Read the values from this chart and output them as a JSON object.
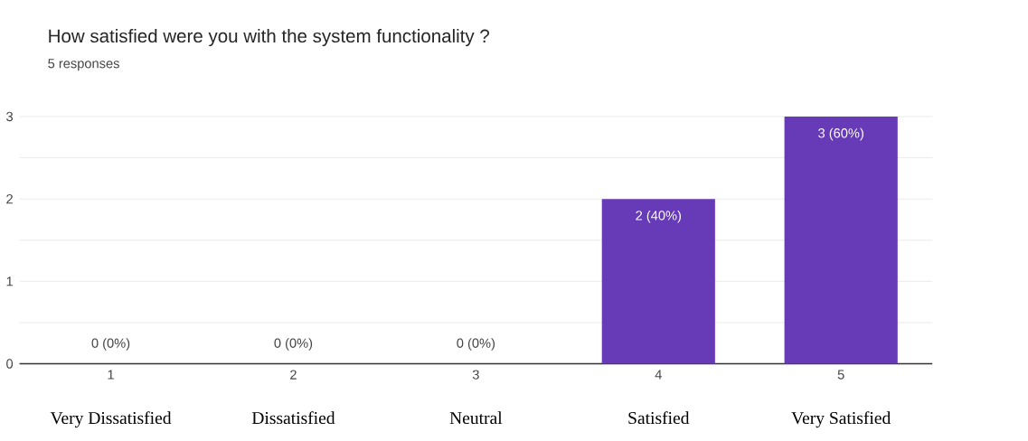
{
  "chart_data": {
    "type": "bar",
    "title": "How satisfied were you with the system functionality ?",
    "subtitle": "5 responses",
    "categories": [
      "1",
      "2",
      "3",
      "4",
      "5"
    ],
    "values": [
      0,
      0,
      0,
      2,
      3
    ],
    "color": "#673ab7",
    "value_labels": [
      "0 (0%)",
      "0 (0%)",
      "0 (0%)",
      "2 (40%)",
      "3 (60%)"
    ],
    "annotations": [
      "Very Dissatisfied",
      "Dissatisfied",
      "Neutral",
      "Satisfied",
      "Very Satisfied"
    ],
    "ylim": [
      0,
      3
    ],
    "yticks": [
      0,
      {
        "value": 0.5,
        "label": null
      },
      1,
      {
        "value": 1.5,
        "label": null
      },
      2,
      {
        "value": 2.5,
        "label": null
      },
      3
    ],
    "grid": "y"
  }
}
